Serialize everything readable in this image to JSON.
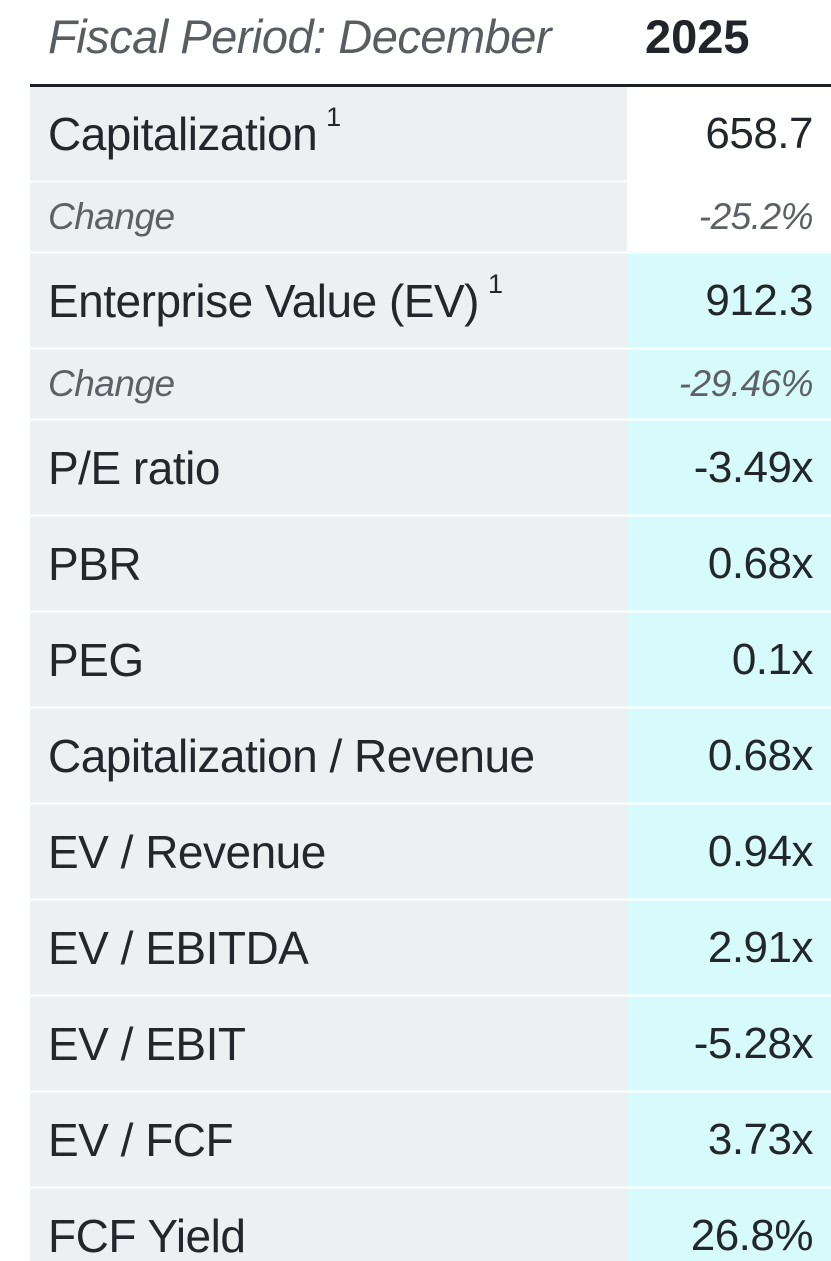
{
  "header": {
    "fiscal_period_label": "Fiscal Period: December",
    "year": "2025"
  },
  "table": {
    "rows": [
      {
        "label": "Capitalization",
        "sup": "1",
        "value": "658.7"
      },
      {
        "label": "Change",
        "value": "-25.2%"
      },
      {
        "label": "Enterprise Value (EV)",
        "sup": "1",
        "value": "912.3"
      },
      {
        "label": "Change",
        "value": "-29.46%"
      },
      {
        "label": "P/E ratio",
        "value": "-3.49x"
      },
      {
        "label": "PBR",
        "value": "0.68x"
      },
      {
        "label": "PEG",
        "value": "0.1x"
      },
      {
        "label": "Capitalization / Revenue",
        "value": "0.68x"
      },
      {
        "label": "EV / Revenue",
        "value": "0.94x"
      },
      {
        "label": "EV / EBITDA",
        "value": "2.91x"
      },
      {
        "label": "EV / EBIT",
        "value": "-5.28x"
      },
      {
        "label": "EV / FCF",
        "value": "3.73x"
      },
      {
        "label": "FCF Yield",
        "value": "26.8%"
      }
    ]
  },
  "colors": {
    "value_column_highlight": "#d7fbfc",
    "label_column_bg": "#edf0f3",
    "top_border": "#1d2124",
    "text_dark": "#23272b",
    "text_muted_italic": "#5d6165",
    "header_gray": "#595d62"
  }
}
